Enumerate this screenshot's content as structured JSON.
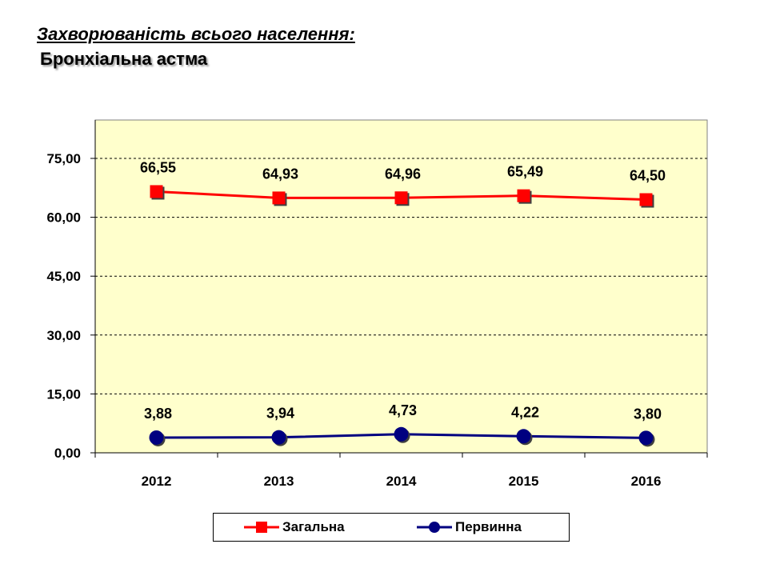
{
  "title": "Захворюваність всього населення:",
  "subtitle": "Бронхіальна астма",
  "chart_data": {
    "type": "line",
    "categories": [
      "2012",
      "2013",
      "2014",
      "2015",
      "2016"
    ],
    "ylim": [
      0,
      75
    ],
    "yticks": [
      0,
      15,
      30,
      45,
      60,
      75
    ],
    "ytick_labels": [
      "0,00",
      "15,00",
      "30,00",
      "45,00",
      "60,00",
      "75,00"
    ],
    "grid": true,
    "legend_position": "bottom",
    "plot_background": "#ffffcc",
    "series": [
      {
        "name": "Загальна",
        "values": [
          66.55,
          64.93,
          64.96,
          65.49,
          64.5
        ],
        "labels": [
          "66,55",
          "64,93",
          "64,96",
          "65,49",
          "64,50"
        ],
        "color": "#ff0000",
        "marker": "square"
      },
      {
        "name": "Первинна",
        "values": [
          3.88,
          3.94,
          4.73,
          4.22,
          3.8
        ],
        "labels": [
          "3,88",
          "3,94",
          "4,73",
          "4,22",
          "3,80"
        ],
        "color": "#000080",
        "marker": "circle"
      }
    ]
  }
}
